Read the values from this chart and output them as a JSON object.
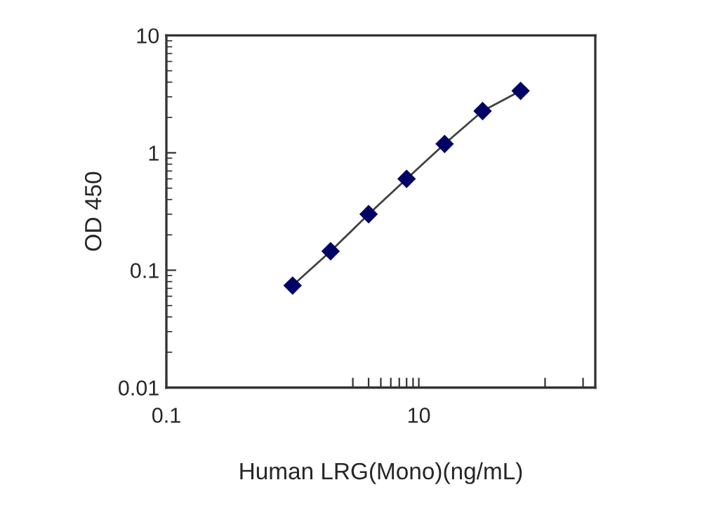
{
  "chart_data": {
    "type": "scatter",
    "xlabel": "Human LRG(Mono)(ng/mL)",
    "ylabel": "OD 450",
    "x": [
      1,
      2,
      4,
      8,
      16,
      32,
      64
    ],
    "series": [
      {
        "color": "#000066",
        "marker": "diamond",
        "values": [
          0.074,
          0.145,
          0.3,
          0.6,
          1.19,
          2.27,
          3.37
        ]
      },
      {
        "type": "line",
        "color": "#404040",
        "marker": "none",
        "values": [
          0.074,
          0.145,
          0.3,
          0.6,
          1.19,
          2.27,
          3.37
        ]
      }
    ],
    "log": "xy",
    "xlim": [
      0.1,
      250
    ],
    "ylim": [
      0.01,
      10
    ],
    "xticks": [
      0.1,
      {
        "value": 3,
        "label": null
      },
      {
        "value": 4,
        "label": null
      },
      {
        "value": 5,
        "label": null
      },
      {
        "value": 6,
        "label": null
      },
      {
        "value": 7,
        "label": null
      },
      {
        "value": 8,
        "label": null
      },
      {
        "value": 9,
        "label": null
      },
      10,
      {
        "value": 100,
        "label": null
      },
      {
        "value": 200,
        "label": null
      }
    ],
    "yticks": [
      0.01,
      0.1,
      1,
      10
    ],
    "grid": false,
    "legend": false
  }
}
